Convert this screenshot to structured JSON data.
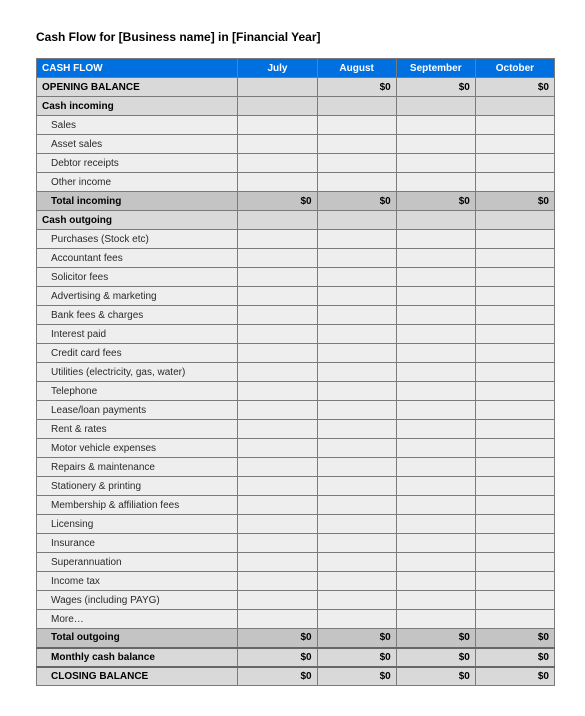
{
  "title": "Cash Flow for [Business name] in [Financial Year]",
  "table": {
    "header_label": "CASH FLOW",
    "months": [
      "July",
      "August",
      "September",
      "October"
    ],
    "opening_balance": {
      "label": "OPENING BALANCE",
      "values": [
        "",
        "$0",
        "$0",
        "$0"
      ]
    },
    "incoming": {
      "section_label": "Cash incoming",
      "items": [
        {
          "label": "Sales",
          "values": [
            "",
            "",
            "",
            ""
          ]
        },
        {
          "label": "Asset sales",
          "values": [
            "",
            "",
            "",
            ""
          ]
        },
        {
          "label": "Debtor receipts",
          "values": [
            "",
            "",
            "",
            ""
          ]
        },
        {
          "label": "Other income",
          "values": [
            "",
            "",
            "",
            ""
          ]
        }
      ],
      "total": {
        "label": "Total incoming",
        "values": [
          "$0",
          "$0",
          "$0",
          "$0"
        ]
      }
    },
    "outgoing": {
      "section_label": "Cash outgoing",
      "items": [
        {
          "label": "Purchases (Stock etc)",
          "values": [
            "",
            "",
            "",
            ""
          ]
        },
        {
          "label": "Accountant fees",
          "values": [
            "",
            "",
            "",
            ""
          ]
        },
        {
          "label": "Solicitor fees",
          "values": [
            "",
            "",
            "",
            ""
          ]
        },
        {
          "label": "Advertising & marketing",
          "values": [
            "",
            "",
            "",
            ""
          ]
        },
        {
          "label": "Bank fees & charges",
          "values": [
            "",
            "",
            "",
            ""
          ]
        },
        {
          "label": "Interest paid",
          "values": [
            "",
            "",
            "",
            ""
          ]
        },
        {
          "label": "Credit card fees",
          "values": [
            "",
            "",
            "",
            ""
          ]
        },
        {
          "label": "Utilities (electricity, gas, water)",
          "values": [
            "",
            "",
            "",
            ""
          ]
        },
        {
          "label": "Telephone",
          "values": [
            "",
            "",
            "",
            ""
          ]
        },
        {
          "label": "Lease/loan payments",
          "values": [
            "",
            "",
            "",
            ""
          ]
        },
        {
          "label": "Rent & rates",
          "values": [
            "",
            "",
            "",
            ""
          ]
        },
        {
          "label": "Motor vehicle expenses",
          "values": [
            "",
            "",
            "",
            ""
          ]
        },
        {
          "label": "Repairs & maintenance",
          "values": [
            "",
            "",
            "",
            ""
          ]
        },
        {
          "label": "Stationery & printing",
          "values": [
            "",
            "",
            "",
            ""
          ]
        },
        {
          "label": "Membership & affiliation fees",
          "values": [
            "",
            "",
            "",
            ""
          ]
        },
        {
          "label": "Licensing",
          "values": [
            "",
            "",
            "",
            ""
          ]
        },
        {
          "label": "Insurance",
          "values": [
            "",
            "",
            "",
            ""
          ]
        },
        {
          "label": "Superannuation",
          "values": [
            "",
            "",
            "",
            ""
          ]
        },
        {
          "label": "Income tax",
          "values": [
            "",
            "",
            "",
            ""
          ]
        },
        {
          "label": "Wages (including PAYG)",
          "values": [
            "",
            "",
            "",
            ""
          ]
        },
        {
          "label": "More…",
          "values": [
            "",
            "",
            "",
            ""
          ]
        }
      ],
      "total": {
        "label": "Total outgoing",
        "values": [
          "$0",
          "$0",
          "$0",
          "$0"
        ]
      }
    },
    "monthly_balance": {
      "label": "Monthly cash balance",
      "values": [
        "$0",
        "$0",
        "$0",
        "$0"
      ]
    },
    "closing_balance": {
      "label": "CLOSING BALANCE",
      "values": [
        "$0",
        "$0",
        "$0",
        "$0"
      ]
    }
  },
  "colors": {
    "header_bg": "#0070e0",
    "header_fg": "#ffffff",
    "section_bg": "#d9d9d9",
    "item_bg": "#eeeeee",
    "total_bg": "#c4c4c4",
    "border": "#7a7a7a"
  }
}
